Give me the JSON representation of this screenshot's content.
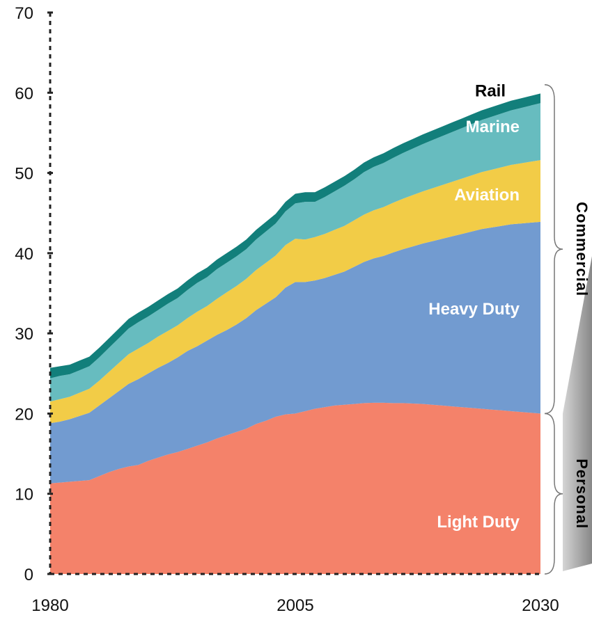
{
  "chart_data": {
    "type": "area",
    "stacked": true,
    "x": [
      1980,
      1981,
      1982,
      1983,
      1984,
      1985,
      1986,
      1987,
      1988,
      1989,
      1990,
      1991,
      1992,
      1993,
      1994,
      1995,
      1996,
      1997,
      1998,
      1999,
      2000,
      2001,
      2002,
      2003,
      2004,
      2005,
      2006,
      2007,
      2008,
      2009,
      2010,
      2011,
      2012,
      2013,
      2014,
      2015,
      2016,
      2017,
      2018,
      2019,
      2020,
      2021,
      2022,
      2023,
      2024,
      2025,
      2026,
      2027,
      2028,
      2029,
      2030
    ],
    "xlim": [
      1980,
      2030
    ],
    "ylim": [
      0,
      70
    ],
    "yticks": [
      0,
      10,
      20,
      30,
      40,
      50,
      60,
      70
    ],
    "xticks": [
      1980,
      2005,
      2030
    ],
    "series": [
      {
        "name": "Light Duty",
        "color": "#f4826a",
        "values": [
          11.3,
          11.4,
          11.5,
          11.6,
          11.7,
          12.2,
          12.7,
          13.1,
          13.4,
          13.6,
          14.1,
          14.5,
          14.9,
          15.2,
          15.6,
          16.0,
          16.4,
          16.9,
          17.3,
          17.7,
          18.1,
          18.7,
          19.1,
          19.6,
          19.9,
          20.0,
          20.3,
          20.6,
          20.8,
          21.0,
          21.1,
          21.2,
          21.3,
          21.35,
          21.35,
          21.3,
          21.3,
          21.25,
          21.2,
          21.1,
          21.0,
          20.9,
          20.8,
          20.7,
          20.6,
          20.5,
          20.4,
          20.3,
          20.2,
          20.1,
          20.0
        ]
      },
      {
        "name": "Heavy Duty",
        "color": "#729bd0",
        "values": [
          7.5,
          7.6,
          7.8,
          8.1,
          8.4,
          8.8,
          9.2,
          9.7,
          10.3,
          10.7,
          10.9,
          11.2,
          11.4,
          11.8,
          12.2,
          12.4,
          12.7,
          12.9,
          13.1,
          13.4,
          13.8,
          14.2,
          14.6,
          14.9,
          15.8,
          16.4,
          16.1,
          16.0,
          16.1,
          16.3,
          16.6,
          17.1,
          17.6,
          18.0,
          18.3,
          18.8,
          19.2,
          19.6,
          20.0,
          20.4,
          20.8,
          21.2,
          21.6,
          22.0,
          22.4,
          22.7,
          23.0,
          23.3,
          23.5,
          23.7,
          23.9
        ]
      },
      {
        "name": "Aviation",
        "color": "#f2cc47",
        "values": [
          2.7,
          2.8,
          2.8,
          2.9,
          3.0,
          3.1,
          3.3,
          3.5,
          3.7,
          3.8,
          3.8,
          3.9,
          4.0,
          4.0,
          4.1,
          4.3,
          4.3,
          4.5,
          4.7,
          4.8,
          4.9,
          5.0,
          5.1,
          5.2,
          5.3,
          5.4,
          5.3,
          5.4,
          5.5,
          5.6,
          5.7,
          5.8,
          5.9,
          6.0,
          6.1,
          6.2,
          6.3,
          6.4,
          6.5,
          6.6,
          6.7,
          6.8,
          6.9,
          7.0,
          7.1,
          7.2,
          7.3,
          7.4,
          7.5,
          7.6,
          7.7
        ]
      },
      {
        "name": "Marine",
        "color": "#67bcbf",
        "values": [
          2.9,
          2.9,
          2.8,
          2.8,
          2.8,
          2.9,
          3.0,
          3.1,
          3.2,
          3.3,
          3.3,
          3.3,
          3.4,
          3.4,
          3.5,
          3.6,
          3.6,
          3.7,
          3.7,
          3.7,
          3.7,
          3.8,
          3.9,
          4.0,
          4.2,
          4.4,
          4.7,
          4.4,
          4.6,
          4.8,
          5.0,
          5.1,
          5.3,
          5.4,
          5.5,
          5.6,
          5.7,
          5.8,
          5.9,
          6.0,
          6.1,
          6.2,
          6.3,
          6.4,
          6.5,
          6.6,
          6.7,
          6.8,
          6.9,
          7.0,
          7.1
        ]
      },
      {
        "name": "Rail",
        "color": "#127f7b",
        "values": [
          1.3,
          1.2,
          1.2,
          1.2,
          1.2,
          1.2,
          1.2,
          1.2,
          1.2,
          1.2,
          1.2,
          1.2,
          1.2,
          1.2,
          1.2,
          1.2,
          1.2,
          1.2,
          1.2,
          1.2,
          1.2,
          1.2,
          1.2,
          1.2,
          1.2,
          1.2,
          1.2,
          1.2,
          1.2,
          1.2,
          1.2,
          1.2,
          1.2,
          1.2,
          1.2,
          1.2,
          1.2,
          1.2,
          1.2,
          1.2,
          1.2,
          1.2,
          1.2,
          1.2,
          1.2,
          1.2,
          1.2,
          1.2,
          1.2,
          1.2,
          1.2
        ]
      }
    ],
    "area_labels": [
      "Light Duty",
      "Heavy Duty",
      "Aviation",
      "Marine",
      "Rail"
    ],
    "brackets": [
      {
        "label": "Commercial",
        "from": 20,
        "to": 61
      },
      {
        "label": "Personal",
        "from": 0,
        "to": 20
      }
    ],
    "grid": false,
    "title": "",
    "xlabel": "",
    "ylabel": ""
  }
}
